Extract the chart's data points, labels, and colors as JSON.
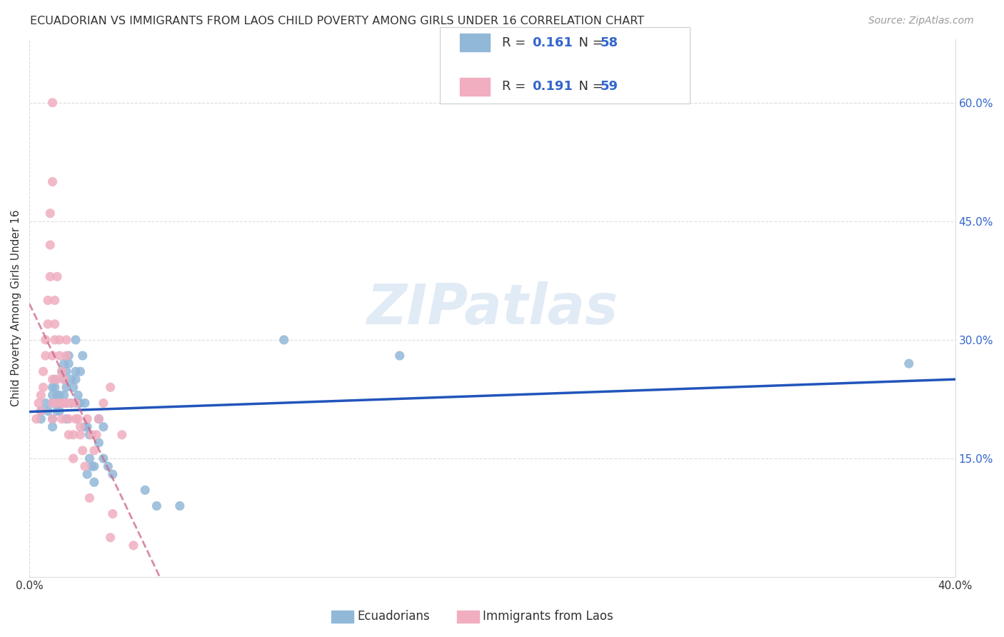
{
  "title": "ECUADORIAN VS IMMIGRANTS FROM LAOS CHILD POVERTY AMONG GIRLS UNDER 16 CORRELATION CHART",
  "source": "Source: ZipAtlas.com",
  "xlim": [
    0.0,
    0.4
  ],
  "ylim": [
    0.0,
    0.68
  ],
  "xtick_positions": [
    0.0,
    0.4
  ],
  "xtick_labels": [
    "0.0%",
    "40.0%"
  ],
  "ytick_right_positions": [
    0.15,
    0.3,
    0.45,
    0.6
  ],
  "ytick_right_labels": [
    "15.0%",
    "30.0%",
    "45.0%",
    "60.0%"
  ],
  "ylabel": "Child Poverty Among Girls Under 16",
  "watermark": "ZIPatlas",
  "legend_R1": "0.161",
  "legend_N1": "58",
  "legend_R2": "0.191",
  "legend_N2": "59",
  "color_blue": "#92b8d8",
  "color_pink": "#f0aec0",
  "trend_blue": "#2255bb",
  "trend_pink": "#cc6688",
  "text_blue": "#3366cc",
  "text_dark": "#333333",
  "text_source": "#999999",
  "grid_color": "#dddddd",
  "ecuadorians_scatter": [
    [
      0.005,
      0.2
    ],
    [
      0.005,
      0.21
    ],
    [
      0.007,
      0.22
    ],
    [
      0.008,
      0.21
    ],
    [
      0.01,
      0.22
    ],
    [
      0.01,
      0.23
    ],
    [
      0.01,
      0.24
    ],
    [
      0.01,
      0.2
    ],
    [
      0.01,
      0.19
    ],
    [
      0.011,
      0.25
    ],
    [
      0.011,
      0.24
    ],
    [
      0.012,
      0.23
    ],
    [
      0.012,
      0.22
    ],
    [
      0.012,
      0.21
    ],
    [
      0.013,
      0.22
    ],
    [
      0.013,
      0.23
    ],
    [
      0.013,
      0.21
    ],
    [
      0.014,
      0.26
    ],
    [
      0.015,
      0.27
    ],
    [
      0.015,
      0.25
    ],
    [
      0.015,
      0.23
    ],
    [
      0.016,
      0.26
    ],
    [
      0.016,
      0.24
    ],
    [
      0.016,
      0.22
    ],
    [
      0.016,
      0.2
    ],
    [
      0.017,
      0.28
    ],
    [
      0.017,
      0.27
    ],
    [
      0.018,
      0.25
    ],
    [
      0.018,
      0.22
    ],
    [
      0.019,
      0.24
    ],
    [
      0.02,
      0.3
    ],
    [
      0.02,
      0.26
    ],
    [
      0.02,
      0.25
    ],
    [
      0.021,
      0.23
    ],
    [
      0.021,
      0.22
    ],
    [
      0.022,
      0.26
    ],
    [
      0.022,
      0.22
    ],
    [
      0.023,
      0.28
    ],
    [
      0.024,
      0.22
    ],
    [
      0.024,
      0.19
    ],
    [
      0.025,
      0.19
    ],
    [
      0.025,
      0.13
    ],
    [
      0.026,
      0.18
    ],
    [
      0.026,
      0.15
    ],
    [
      0.027,
      0.14
    ],
    [
      0.028,
      0.14
    ],
    [
      0.028,
      0.12
    ],
    [
      0.03,
      0.2
    ],
    [
      0.03,
      0.17
    ],
    [
      0.032,
      0.19
    ],
    [
      0.032,
      0.15
    ],
    [
      0.034,
      0.14
    ],
    [
      0.036,
      0.13
    ],
    [
      0.05,
      0.11
    ],
    [
      0.055,
      0.09
    ],
    [
      0.065,
      0.09
    ],
    [
      0.11,
      0.3
    ],
    [
      0.16,
      0.28
    ],
    [
      0.38,
      0.27
    ]
  ],
  "laos_scatter": [
    [
      0.003,
      0.2
    ],
    [
      0.004,
      0.22
    ],
    [
      0.005,
      0.21
    ],
    [
      0.005,
      0.23
    ],
    [
      0.006,
      0.24
    ],
    [
      0.006,
      0.26
    ],
    [
      0.007,
      0.28
    ],
    [
      0.007,
      0.3
    ],
    [
      0.008,
      0.32
    ],
    [
      0.008,
      0.35
    ],
    [
      0.009,
      0.38
    ],
    [
      0.009,
      0.42
    ],
    [
      0.009,
      0.46
    ],
    [
      0.01,
      0.6
    ],
    [
      0.01,
      0.5
    ],
    [
      0.01,
      0.2
    ],
    [
      0.01,
      0.22
    ],
    [
      0.01,
      0.25
    ],
    [
      0.01,
      0.28
    ],
    [
      0.011,
      0.3
    ],
    [
      0.011,
      0.32
    ],
    [
      0.011,
      0.35
    ],
    [
      0.012,
      0.38
    ],
    [
      0.012,
      0.25
    ],
    [
      0.012,
      0.22
    ],
    [
      0.013,
      0.28
    ],
    [
      0.013,
      0.3
    ],
    [
      0.014,
      0.26
    ],
    [
      0.014,
      0.22
    ],
    [
      0.014,
      0.2
    ],
    [
      0.015,
      0.22
    ],
    [
      0.015,
      0.25
    ],
    [
      0.016,
      0.3
    ],
    [
      0.016,
      0.28
    ],
    [
      0.016,
      0.22
    ],
    [
      0.017,
      0.2
    ],
    [
      0.017,
      0.18
    ],
    [
      0.018,
      0.22
    ],
    [
      0.019,
      0.18
    ],
    [
      0.019,
      0.15
    ],
    [
      0.02,
      0.2
    ],
    [
      0.02,
      0.22
    ],
    [
      0.021,
      0.2
    ],
    [
      0.022,
      0.19
    ],
    [
      0.022,
      0.18
    ],
    [
      0.023,
      0.16
    ],
    [
      0.024,
      0.14
    ],
    [
      0.025,
      0.2
    ],
    [
      0.026,
      0.1
    ],
    [
      0.027,
      0.18
    ],
    [
      0.028,
      0.16
    ],
    [
      0.029,
      0.18
    ],
    [
      0.03,
      0.2
    ],
    [
      0.032,
      0.22
    ],
    [
      0.035,
      0.24
    ],
    [
      0.035,
      0.05
    ],
    [
      0.036,
      0.08
    ],
    [
      0.04,
      0.18
    ],
    [
      0.045,
      0.04
    ]
  ]
}
